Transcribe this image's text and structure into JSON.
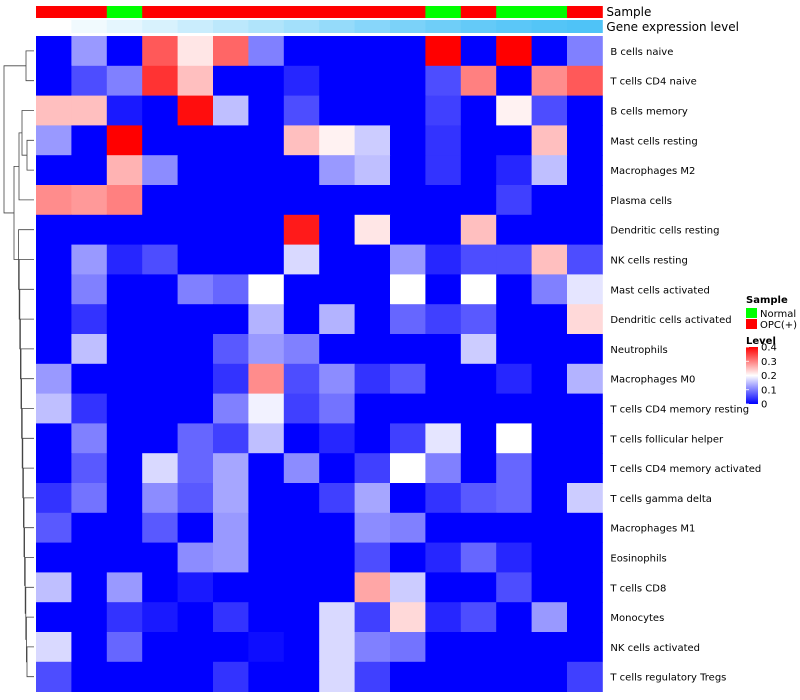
{
  "chart_data": {
    "type": "heatmap",
    "annotation_tracks": [
      {
        "name": "Sample",
        "values": [
          "OPC(+)",
          "OPC(+)",
          "Normal",
          "OPC(+)",
          "OPC(+)",
          "OPC(+)",
          "OPC(+)",
          "OPC(+)",
          "OPC(+)",
          "OPC(+)",
          "OPC(+)",
          "Normal",
          "OPC(+)",
          "Normal",
          "Normal",
          "OPC(+)"
        ]
      },
      {
        "name": "Gene expression level",
        "values": [
          0.0,
          0.08,
          0.15,
          0.22,
          0.3,
          0.38,
          0.45,
          0.52,
          0.6,
          0.68,
          0.75,
          0.82,
          0.88,
          0.93,
          0.97,
          1.0
        ]
      }
    ],
    "rows": [
      "B cells naive",
      "T cells CD4 naive",
      "B cells memory",
      "Mast cells resting",
      "Macrophages M2",
      "Plasma cells",
      "Dendritic cells resting",
      "NK cells resting",
      "Mast cells activated",
      "Dendritic cells activated",
      "Neutrophils",
      "Macrophages M0",
      "T cells CD4 memory resting",
      "T cells follicular helper",
      "T cells CD4 memory activated",
      "T cells gamma delta",
      "Macrophages M1",
      "Eosinophils",
      "T cells CD8",
      "Monocytes",
      "NK cells activated",
      "T cells regulatory  Tregs"
    ],
    "values": [
      [
        0,
        0.12,
        0,
        0.33,
        0.22,
        0.32,
        0.1,
        0,
        0,
        0,
        0,
        0.4,
        0,
        0.4,
        0,
        0.1
      ],
      [
        0,
        0.06,
        0.1,
        0.36,
        0.25,
        0,
        0,
        0.03,
        0,
        0,
        0,
        0.06,
        0.3,
        0,
        0.29,
        0.33
      ],
      [
        0.25,
        0.25,
        0.02,
        0,
        0.39,
        0.15,
        0,
        0.06,
        0,
        0,
        0,
        0.05,
        0,
        0.21,
        0.06,
        0
      ],
      [
        0.12,
        0,
        0.4,
        0,
        0,
        0,
        0,
        0.25,
        0.21,
        0.16,
        0,
        0.04,
        0,
        0,
        0.25,
        0
      ],
      [
        0,
        0,
        0.26,
        0.11,
        0,
        0,
        0,
        0,
        0.12,
        0.15,
        0,
        0.04,
        0,
        0.03,
        0.15,
        0
      ],
      [
        0.29,
        0.28,
        0.3,
        0,
        0,
        0,
        0,
        0,
        0,
        0,
        0,
        0,
        0,
        0.05,
        0,
        0
      ],
      [
        0,
        0,
        0,
        0,
        0,
        0,
        0,
        0.38,
        0,
        0.22,
        0,
        0,
        0.25,
        0,
        0,
        0
      ],
      [
        0,
        0.12,
        0.03,
        0.06,
        0,
        0,
        0,
        0.17,
        0,
        0,
        0.12,
        0.03,
        0.06,
        0.06,
        0.25,
        0.06
      ],
      [
        0,
        0.1,
        0,
        0,
        0.1,
        0.08,
        0.2,
        0,
        0,
        0,
        0.2,
        0,
        0.2,
        0,
        0.1,
        0.18
      ],
      [
        0,
        0.04,
        0,
        0,
        0,
        0,
        0.14,
        0,
        0.14,
        0,
        0.08,
        0.05,
        0.07,
        0,
        0,
        0.23
      ],
      [
        0,
        0.15,
        0,
        0,
        0,
        0.07,
        0.12,
        0.1,
        0,
        0,
        0,
        0,
        0.16,
        0,
        0,
        0
      ],
      [
        0.12,
        0,
        0,
        0,
        0,
        0.04,
        0.29,
        0.06,
        0.11,
        0.04,
        0.07,
        0,
        0,
        0.03,
        0,
        0.14
      ],
      [
        0.15,
        0.04,
        0,
        0,
        0,
        0.1,
        0.19,
        0.05,
        0.09,
        0,
        0,
        0,
        0,
        0,
        0,
        0
      ],
      [
        0,
        0.1,
        0,
        0,
        0.08,
        0.05,
        0.15,
        0,
        0.03,
        0,
        0.05,
        0.18,
        0,
        0.2,
        0,
        0
      ],
      [
        0,
        0.07,
        0,
        0.17,
        0.08,
        0.13,
        0,
        0.11,
        0,
        0.05,
        0.2,
        0.1,
        0,
        0.08,
        0,
        0
      ],
      [
        0.04,
        0.09,
        0,
        0.11,
        0.07,
        0.13,
        0,
        0,
        0.05,
        0.13,
        0,
        0.04,
        0.07,
        0.08,
        0,
        0.16
      ],
      [
        0.07,
        0,
        0,
        0.07,
        0,
        0.12,
        0,
        0,
        0,
        0.11,
        0.1,
        0,
        0,
        0,
        0,
        0
      ],
      [
        0,
        0,
        0,
        0,
        0.11,
        0.12,
        0,
        0,
        0,
        0.06,
        0,
        0.03,
        0.08,
        0.03,
        0,
        0
      ],
      [
        0.15,
        0,
        0.12,
        0,
        0.02,
        0,
        0,
        0,
        0,
        0.27,
        0.16,
        0,
        0,
        0.06,
        0,
        0
      ],
      [
        0,
        0,
        0.04,
        0.02,
        0,
        0.04,
        0,
        0,
        0.17,
        0.05,
        0.23,
        0.03,
        0.06,
        0,
        0.12,
        0
      ],
      [
        0.17,
        0,
        0.08,
        0,
        0,
        0,
        0.01,
        0,
        0.17,
        0.1,
        0.09,
        0,
        0,
        0,
        0,
        0
      ],
      [
        0.06,
        0,
        0,
        0,
        0,
        0.04,
        0,
        0,
        0.17,
        0.05,
        0,
        0,
        0,
        0,
        0,
        0.05
      ]
    ],
    "color_scale": {
      "low": "#0000ff",
      "mid": "#ffffff",
      "high": "#ff0000",
      "range": [
        0,
        0.4
      ],
      "midpoint": 0.2
    },
    "annotation_colors": {
      "sample": {
        "Normal": "#00ff00",
        "OPC(+)": "#ff0000"
      },
      "gene_expression": {
        "low": "#ffffff",
        "high": "#4fc3f7"
      }
    },
    "legends": [
      {
        "title": "Sample",
        "entries": [
          "Normal",
          "OPC(+)"
        ]
      },
      {
        "title": "Level",
        "ticks": [
          0.4,
          0.3,
          0.2,
          0.1,
          0
        ],
        "tick_labels": [
          "0.4",
          "0.3",
          "0.2",
          "0.1",
          "0"
        ]
      }
    ],
    "row_dendrogram": true,
    "legend_position": "right"
  }
}
